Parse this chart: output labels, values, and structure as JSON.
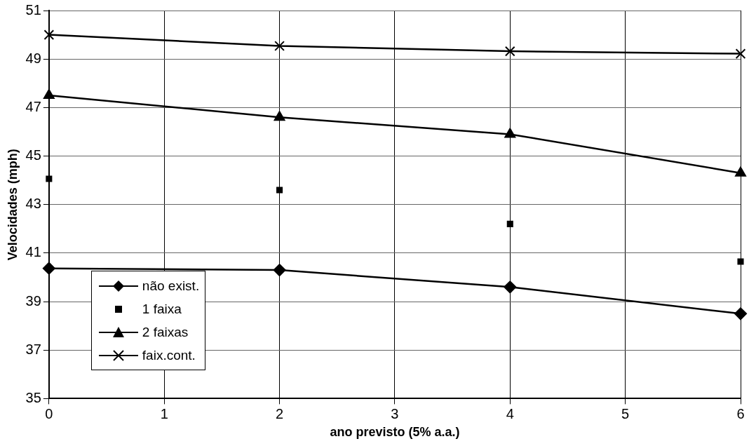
{
  "chart_data": {
    "type": "line",
    "xlabel": "ano previsto (5% a.a.)",
    "ylabel": "Velocidades (mph)",
    "x": [
      0,
      2,
      4,
      6
    ],
    "series": [
      {
        "name": "não exist.",
        "color": "#000000",
        "marker": "diamond",
        "line_style": "solid",
        "values": [
          40.37,
          40.3,
          39.6,
          38.5
        ]
      },
      {
        "name": "1 faixa",
        "color": "#000000",
        "type": "scatter",
        "marker": "square",
        "values": [
          44.06,
          43.6,
          42.2,
          40.65
        ]
      },
      {
        "name": "2 faixas",
        "color": "#000000",
        "marker": "triangle",
        "line_style": "solid",
        "values": [
          47.5,
          46.6,
          45.9,
          44.3
        ]
      },
      {
        "name": "faix.cont.",
        "color": "#000000",
        "marker": "cross",
        "line_style": "solid",
        "values": [
          50.0,
          49.54,
          49.32,
          49.22
        ]
      }
    ],
    "xlim": [
      0,
      6
    ],
    "xticks": [
      0,
      1,
      2,
      3,
      4,
      5,
      6
    ],
    "ylim": [
      35,
      51
    ],
    "yticks": [
      35,
      37,
      39,
      41,
      43,
      45,
      47,
      49,
      51
    ],
    "grid": true,
    "legend": "bottom left"
  }
}
